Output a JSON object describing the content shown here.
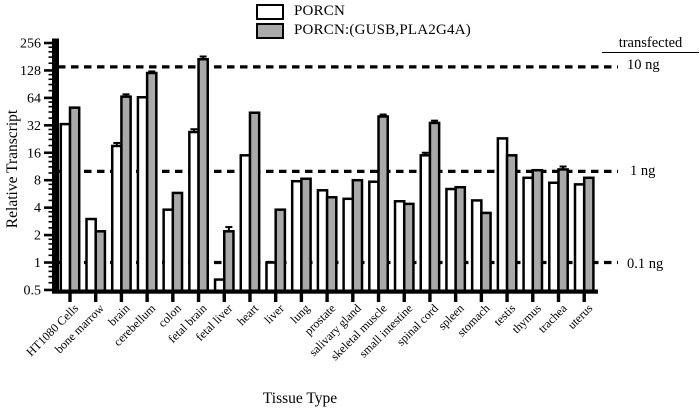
{
  "figure": {
    "y_axis_label": "Relative Transcript",
    "x_axis_label": "Tissue Type",
    "right_header": "transfected"
  },
  "legend": [
    {
      "label": "PORCN",
      "fill": "#ffffff"
    },
    {
      "label": "PORCN:(GUSB,PLA2G4A)",
      "fill": "#a9a9a9"
    }
  ],
  "colors": {
    "bar_stroke": "#000000",
    "porcn_fill": "#ffffff",
    "gusb_fill": "#a9a9a9",
    "background": "#ffffff",
    "line_color": "#000000"
  },
  "chart_data": {
    "type": "bar",
    "title": "",
    "xlabel": "Tissue Type",
    "ylabel": "Relative Transcript",
    "y_scale": "log2",
    "ylim": [
      0.5,
      256
    ],
    "yticks": [
      256,
      128,
      64,
      32,
      16,
      8,
      4,
      2,
      1,
      0.5
    ],
    "grid": false,
    "legend_position": "top-center",
    "categories": [
      "HT1080 Cells",
      "bone marrow",
      "brain",
      "cerebellum",
      "colon",
      "fetal brain",
      "fetal liver",
      "heart",
      "liver",
      "lung",
      "prostate",
      "salivary gland",
      "skeletal muscle",
      "small intestine",
      "spinal cord",
      "spleen",
      "stomach",
      "testis",
      "thymus",
      "trachea",
      "uterus"
    ],
    "series": [
      {
        "name": "PORCN",
        "fill": "#ffffff",
        "values": [
          33,
          3.0,
          19,
          65,
          3.8,
          27,
          0.65,
          15,
          1.0,
          7.8,
          6.2,
          5.0,
          7.7,
          4.7,
          15,
          6.4,
          4.8,
          23,
          8.5,
          7.5,
          7.2
        ],
        "errors": [
          0,
          0,
          1.5,
          0,
          0,
          2,
          0,
          0,
          0,
          0,
          0,
          0,
          0,
          0,
          1,
          0,
          0,
          0,
          0,
          0,
          0
        ]
      },
      {
        "name": "PORCN:(GUSB,PLA2G4A)",
        "fill": "#a9a9a9",
        "values": [
          50,
          2.2,
          66,
          120,
          5.8,
          170,
          2.2,
          44,
          3.8,
          8.3,
          5.2,
          8.0,
          40,
          4.4,
          34,
          6.7,
          3.5,
          15,
          10.3,
          10.5,
          8.5
        ],
        "errors": [
          0,
          0,
          4,
          5,
          0,
          12,
          0.25,
          0,
          0,
          0,
          0,
          0,
          2,
          0,
          2,
          0,
          0,
          0,
          0,
          0.8,
          0
        ]
      }
    ],
    "reference_lines": [
      {
        "value": 140,
        "label": "10 ng"
      },
      {
        "value": 10,
        "label": "1 ng"
      },
      {
        "value": 1,
        "label": "0.1 ng"
      }
    ]
  }
}
